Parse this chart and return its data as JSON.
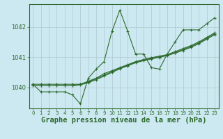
{
  "xlabel": "Graphe pression niveau de la mer (hPa)",
  "hours": [
    0,
    1,
    2,
    3,
    4,
    5,
    6,
    7,
    8,
    9,
    10,
    11,
    12,
    13,
    14,
    15,
    16,
    17,
    18,
    19,
    20,
    21,
    22,
    23
  ],
  "jagged": [
    1040.1,
    1039.85,
    1039.85,
    1039.85,
    1039.85,
    1039.75,
    1039.45,
    1040.3,
    1040.6,
    1040.85,
    1041.85,
    1042.55,
    1041.85,
    1041.1,
    1041.1,
    1040.65,
    1040.6,
    1041.1,
    1041.5,
    1041.9,
    1041.9,
    1041.9,
    1042.1,
    1042.3
  ],
  "trend1": [
    1040.1,
    1040.1,
    1040.1,
    1040.1,
    1040.1,
    1040.1,
    1040.1,
    1040.2,
    1040.3,
    1040.45,
    1040.55,
    1040.65,
    1040.75,
    1040.85,
    1040.92,
    1040.98,
    1041.03,
    1041.08,
    1041.18,
    1041.28,
    1041.38,
    1041.5,
    1041.65,
    1041.8
  ],
  "trend2": [
    1040.05,
    1040.05,
    1040.05,
    1040.05,
    1040.05,
    1040.05,
    1040.1,
    1040.18,
    1040.28,
    1040.4,
    1040.52,
    1040.63,
    1040.73,
    1040.83,
    1040.9,
    1040.96,
    1041.01,
    1041.07,
    1041.15,
    1041.25,
    1041.35,
    1041.47,
    1041.62,
    1041.77
  ],
  "trend3": [
    1040.05,
    1040.05,
    1040.05,
    1040.05,
    1040.05,
    1040.05,
    1040.08,
    1040.15,
    1040.25,
    1040.37,
    1040.49,
    1040.61,
    1040.71,
    1040.81,
    1040.88,
    1040.94,
    1040.99,
    1041.05,
    1041.13,
    1041.22,
    1041.32,
    1041.44,
    1041.59,
    1041.74
  ],
  "line_color": "#2d6a2d",
  "bg_color": "#cce8f0",
  "grid_color": "#b0c8d0",
  "ylim": [
    1039.3,
    1042.75
  ],
  "yticks": [
    1040,
    1041,
    1042
  ],
  "xlim": [
    -0.5,
    23.5
  ]
}
